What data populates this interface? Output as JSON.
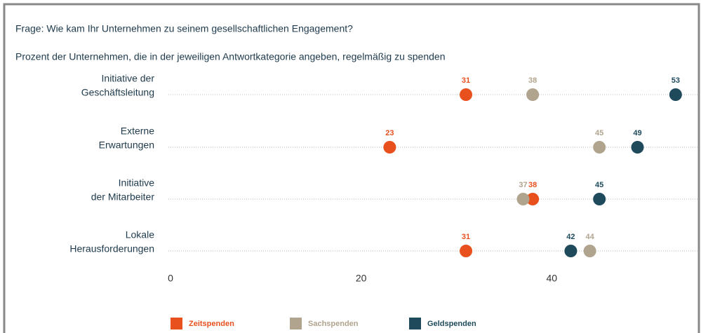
{
  "chart_data": {
    "type": "dot",
    "title": "Frage: Wie kam Ihr Unternehmen zu seinem gesellschaftlichen Engagement?",
    "subtitle": "Prozent der Unternehmen, die in der jeweiligen Antwortkategorie angeben, regelmäßig zu spenden",
    "categories": [
      [
        "Initiative der",
        "Geschäftsleitung"
      ],
      [
        "Externe",
        "Erwartungen"
      ],
      [
        "Initiative",
        "der Mitarbeiter"
      ],
      [
        "Lokale",
        "Herausforderungen"
      ]
    ],
    "series": [
      {
        "name": "Zeitspenden",
        "color": "#e8501e",
        "values": [
          31,
          23,
          38,
          31
        ]
      },
      {
        "name": "Sachspenden",
        "color": "#b0a48e",
        "values": [
          38,
          45,
          37,
          44
        ]
      },
      {
        "name": "Geldspenden",
        "color": "#1e4a5c",
        "values": [
          53,
          49,
          45,
          42
        ]
      }
    ],
    "xlim": [
      0,
      55
    ],
    "xticks": [
      0,
      20,
      40
    ]
  }
}
